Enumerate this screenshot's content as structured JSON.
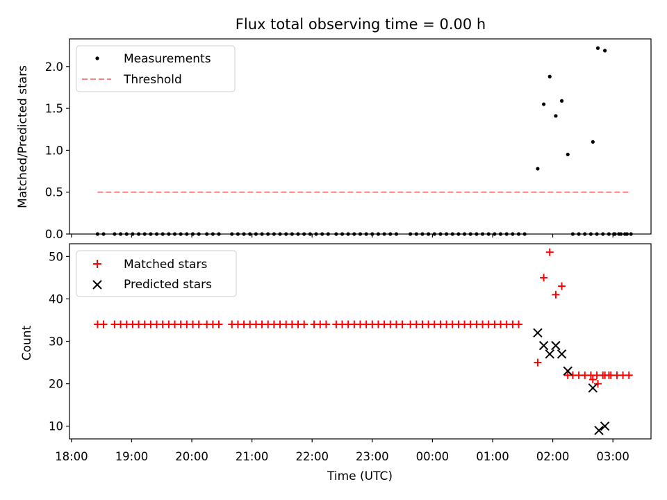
{
  "chart_data": [
    {
      "type": "scatter",
      "title": "Flux total observing time = 0.00 h",
      "xlabel": "",
      "ylabel": "Matched/Predicted stars",
      "xlim": [
        "17:58",
        "03:38"
      ],
      "ylim": [
        0,
        2.33
      ],
      "yticks": [
        "0.0",
        "0.5",
        "1.0",
        "1.5",
        "2.0"
      ],
      "grid": false,
      "legend_position": "upper left",
      "series": [
        {
          "name": "Measurements",
          "marker": "dot",
          "color": "#000000",
          "points": [
            [
              "18:26",
              0
            ],
            [
              "18:32",
              0
            ],
            [
              "18:43",
              0
            ],
            [
              "18:49",
              0
            ],
            [
              "18:55",
              0
            ],
            [
              "19:01",
              0
            ],
            [
              "19:07",
              0
            ],
            [
              "19:13",
              0
            ],
            [
              "19:19",
              0
            ],
            [
              "19:25",
              0
            ],
            [
              "19:31",
              0
            ],
            [
              "19:37",
              0
            ],
            [
              "19:43",
              0
            ],
            [
              "19:49",
              0
            ],
            [
              "19:55",
              0
            ],
            [
              "20:01",
              0
            ],
            [
              "20:07",
              0
            ],
            [
              "20:15",
              0
            ],
            [
              "20:21",
              0
            ],
            [
              "20:27",
              0
            ],
            [
              "20:40",
              0
            ],
            [
              "20:46",
              0
            ],
            [
              "20:52",
              0
            ],
            [
              "20:58",
              0
            ],
            [
              "21:04",
              0
            ],
            [
              "21:10",
              0
            ],
            [
              "21:16",
              0
            ],
            [
              "21:22",
              0
            ],
            [
              "21:28",
              0
            ],
            [
              "21:34",
              0
            ],
            [
              "21:40",
              0
            ],
            [
              "21:46",
              0
            ],
            [
              "21:52",
              0
            ],
            [
              "21:58",
              0
            ],
            [
              "22:04",
              0
            ],
            [
              "22:10",
              0
            ],
            [
              "22:16",
              0
            ],
            [
              "22:24",
              0
            ],
            [
              "22:30",
              0
            ],
            [
              "22:36",
              0
            ],
            [
              "22:42",
              0
            ],
            [
              "22:48",
              0
            ],
            [
              "22:54",
              0
            ],
            [
              "23:00",
              0
            ],
            [
              "23:06",
              0
            ],
            [
              "23:12",
              0
            ],
            [
              "23:18",
              0
            ],
            [
              "23:24",
              0
            ],
            [
              "23:38",
              0
            ],
            [
              "23:44",
              0
            ],
            [
              "23:50",
              0
            ],
            [
              "23:56",
              0
            ],
            [
              "00:02",
              0
            ],
            [
              "00:08",
              0
            ],
            [
              "00:14",
              0
            ],
            [
              "00:20",
              0
            ],
            [
              "00:26",
              0
            ],
            [
              "00:32",
              0
            ],
            [
              "00:38",
              0
            ],
            [
              "00:44",
              0
            ],
            [
              "00:50",
              0
            ],
            [
              "00:56",
              0
            ],
            [
              "01:02",
              0
            ],
            [
              "01:08",
              0
            ],
            [
              "01:14",
              0
            ],
            [
              "01:20",
              0
            ],
            [
              "01:26",
              0
            ],
            [
              "01:32",
              0
            ],
            [
              "01:45",
              0.78
            ],
            [
              "01:51",
              1.55
            ],
            [
              "01:57",
              1.88
            ],
            [
              "02:03",
              1.41
            ],
            [
              "02:09",
              1.59
            ],
            [
              "02:15",
              0.95
            ],
            [
              "02:20",
              0
            ],
            [
              "02:26",
              0
            ],
            [
              "02:32",
              0
            ],
            [
              "02:38",
              0
            ],
            [
              "02:44",
              0
            ],
            [
              "02:50",
              0
            ],
            [
              "02:56",
              0
            ],
            [
              "03:02",
              0
            ],
            [
              "03:08",
              0
            ],
            [
              "03:14",
              0
            ],
            [
              "02:40",
              1.1
            ],
            [
              "02:45",
              2.22
            ],
            [
              "02:52",
              2.19
            ],
            [
              "03:01",
              0
            ],
            [
              "03:06",
              0
            ],
            [
              "03:12",
              0
            ],
            [
              "03:18",
              0
            ]
          ]
        },
        {
          "name": "Threshold",
          "style": "dashed",
          "color": "#ff7f7f",
          "points": [
            [
              "18:26",
              0.5
            ],
            [
              "03:18",
              0.5
            ]
          ]
        }
      ]
    },
    {
      "type": "scatter",
      "title": "",
      "xlabel": "Time (UTC)",
      "ylabel": "Count",
      "xlim": [
        "17:58",
        "03:38"
      ],
      "ylim": [
        7,
        53
      ],
      "yticks": [
        "10",
        "20",
        "30",
        "40",
        "50"
      ],
      "xticks": [
        "18:00",
        "19:00",
        "20:00",
        "21:00",
        "22:00",
        "23:00",
        "00:00",
        "01:00",
        "02:00",
        "03:00"
      ],
      "grid": false,
      "legend_position": "upper left",
      "series": [
        {
          "name": "Matched stars",
          "marker": "plus",
          "color": "#ff0000",
          "points": [
            [
              "18:26",
              34
            ],
            [
              "18:32",
              34
            ],
            [
              "18:43",
              34
            ],
            [
              "18:49",
              34
            ],
            [
              "18:55",
              34
            ],
            [
              "19:01",
              34
            ],
            [
              "19:07",
              34
            ],
            [
              "19:13",
              34
            ],
            [
              "19:19",
              34
            ],
            [
              "19:25",
              34
            ],
            [
              "19:31",
              34
            ],
            [
              "19:37",
              34
            ],
            [
              "19:43",
              34
            ],
            [
              "19:49",
              34
            ],
            [
              "19:55",
              34
            ],
            [
              "20:01",
              34
            ],
            [
              "20:07",
              34
            ],
            [
              "20:15",
              34
            ],
            [
              "20:21",
              34
            ],
            [
              "20:27",
              34
            ],
            [
              "20:40",
              34
            ],
            [
              "20:46",
              34
            ],
            [
              "20:52",
              34
            ],
            [
              "20:58",
              34
            ],
            [
              "21:04",
              34
            ],
            [
              "21:10",
              34
            ],
            [
              "21:16",
              34
            ],
            [
              "21:22",
              34
            ],
            [
              "21:28",
              34
            ],
            [
              "21:34",
              34
            ],
            [
              "21:40",
              34
            ],
            [
              "21:46",
              34
            ],
            [
              "21:52",
              34
            ],
            [
              "22:02",
              34
            ],
            [
              "22:08",
              34
            ],
            [
              "22:14",
              34
            ],
            [
              "22:24",
              34
            ],
            [
              "22:30",
              34
            ],
            [
              "22:36",
              34
            ],
            [
              "22:42",
              34
            ],
            [
              "22:48",
              34
            ],
            [
              "22:54",
              34
            ],
            [
              "23:00",
              34
            ],
            [
              "23:06",
              34
            ],
            [
              "23:12",
              34
            ],
            [
              "23:18",
              34
            ],
            [
              "23:24",
              34
            ],
            [
              "23:30",
              34
            ],
            [
              "23:38",
              34
            ],
            [
              "23:44",
              34
            ],
            [
              "23:50",
              34
            ],
            [
              "23:56",
              34
            ],
            [
              "00:02",
              34
            ],
            [
              "00:08",
              34
            ],
            [
              "00:14",
              34
            ],
            [
              "00:20",
              34
            ],
            [
              "00:26",
              34
            ],
            [
              "00:32",
              34
            ],
            [
              "00:38",
              34
            ],
            [
              "00:44",
              34
            ],
            [
              "00:50",
              34
            ],
            [
              "00:56",
              34
            ],
            [
              "01:02",
              34
            ],
            [
              "01:08",
              34
            ],
            [
              "01:14",
              34
            ],
            [
              "01:20",
              34
            ],
            [
              "01:26",
              34
            ],
            [
              "01:45",
              25
            ],
            [
              "01:51",
              45
            ],
            [
              "01:57",
              51
            ],
            [
              "02:03",
              41
            ],
            [
              "02:09",
              43
            ],
            [
              "02:15",
              22
            ],
            [
              "02:20",
              22
            ],
            [
              "02:26",
              22
            ],
            [
              "02:32",
              22
            ],
            [
              "02:38",
              22
            ],
            [
              "02:44",
              22
            ],
            [
              "02:50",
              22
            ],
            [
              "02:56",
              22
            ],
            [
              "02:40",
              21
            ],
            [
              "02:45",
              20
            ],
            [
              "02:52",
              22
            ],
            [
              "02:58",
              22
            ],
            [
              "03:04",
              22
            ],
            [
              "03:10",
              22
            ],
            [
              "03:16",
              22
            ]
          ]
        },
        {
          "name": "Predicted stars",
          "marker": "x",
          "color": "#000000",
          "points": [
            [
              "01:45",
              32
            ],
            [
              "01:51",
              29
            ],
            [
              "01:57",
              27
            ],
            [
              "02:03",
              29
            ],
            [
              "02:09",
              27
            ],
            [
              "02:15",
              23
            ],
            [
              "02:40",
              19
            ],
            [
              "02:46",
              9
            ],
            [
              "02:52",
              10
            ]
          ]
        }
      ]
    }
  ]
}
